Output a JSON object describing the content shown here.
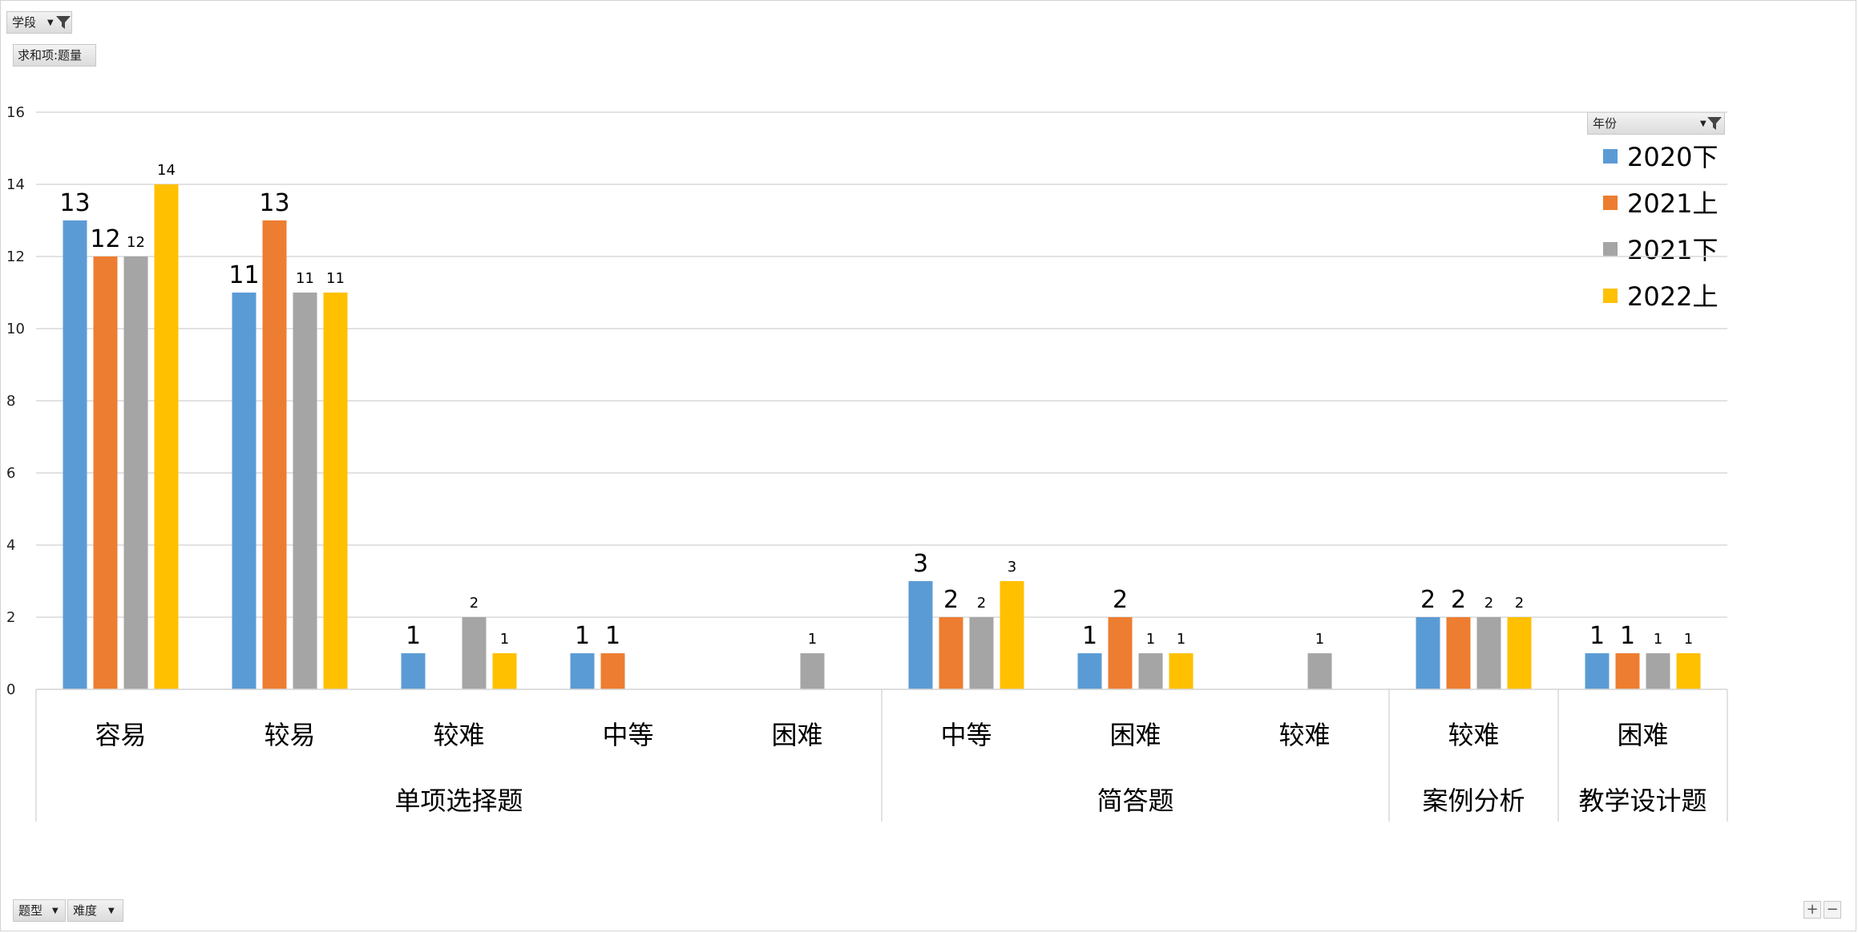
{
  "filters": {
    "report_filter": "学段",
    "values_field": "求和项:题量",
    "legend_filter": "年份",
    "axis_fields": [
      "题型",
      "难度"
    ]
  },
  "colors": {
    "2020下": "#5b9bd5",
    "2021上": "#ed7d31",
    "2021下": "#a5a5a5",
    "2022上": "#ffc000"
  },
  "chart_data": {
    "type": "bar",
    "title": "",
    "xlabel": "",
    "ylabel": "",
    "ylim": [
      0,
      16
    ],
    "yticks": [
      0,
      2,
      4,
      6,
      8,
      10,
      12,
      14,
      16
    ],
    "grid": true,
    "legend_position": "right",
    "groups": [
      {
        "name": "单项选择题",
        "categories": [
          "容易",
          "较易",
          "较难",
          "中等",
          "困难"
        ]
      },
      {
        "name": "简答题",
        "categories": [
          "中等",
          "困难",
          "较难"
        ]
      },
      {
        "name": "案例分析",
        "categories": [
          "较难"
        ]
      },
      {
        "name": "教学设计题",
        "categories": [
          "困难"
        ]
      }
    ],
    "series": [
      {
        "name": "2020下",
        "values": [
          13,
          11,
          1,
          1,
          null,
          3,
          1,
          null,
          2,
          1
        ]
      },
      {
        "name": "2021上",
        "values": [
          12,
          13,
          null,
          1,
          null,
          2,
          2,
          null,
          2,
          1
        ]
      },
      {
        "name": "2021下",
        "values": [
          12,
          11,
          2,
          null,
          1,
          2,
          1,
          1,
          2,
          1
        ]
      },
      {
        "name": "2022上",
        "values": [
          14,
          11,
          1,
          null,
          null,
          3,
          1,
          null,
          2,
          1
        ]
      }
    ]
  }
}
